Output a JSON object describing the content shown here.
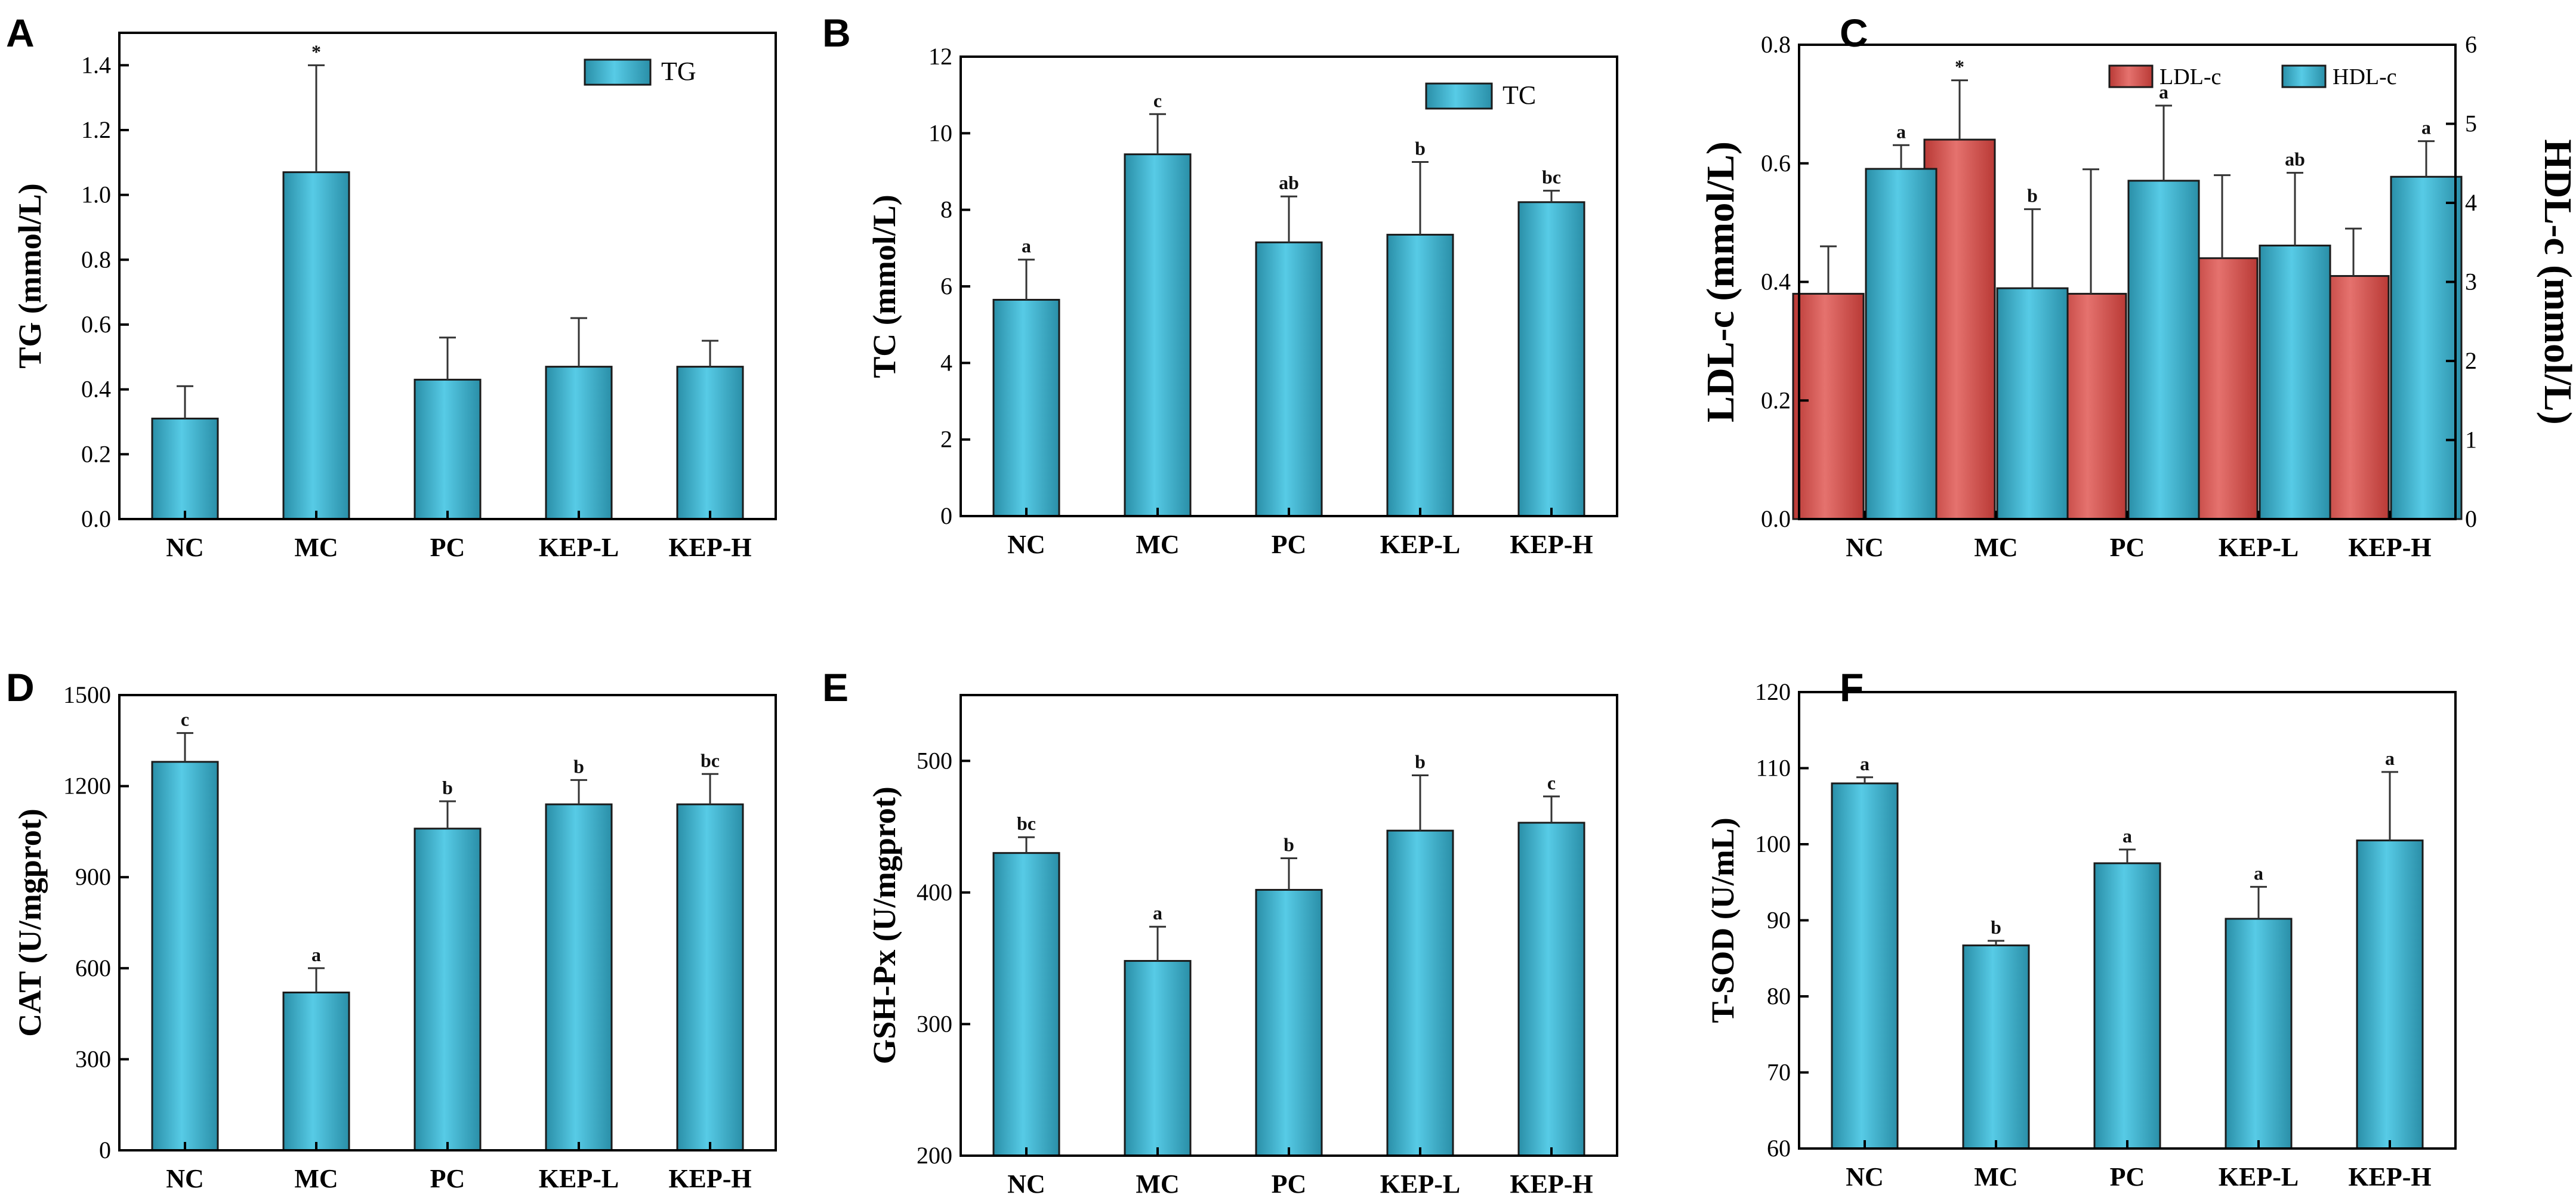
{
  "figure": {
    "panel_letters": [
      "A",
      "B",
      "C",
      "D",
      "E",
      "F"
    ]
  },
  "colors": {
    "bar_cyan": "#3cb6d2",
    "bar_red": "#d9504c",
    "axis": "#000000"
  },
  "chart_data": [
    {
      "panel": "A",
      "type": "bar",
      "title": "",
      "xlabel": "",
      "ylabel": "TG (mmol/L)",
      "categories": [
        "NC",
        "MC",
        "PC",
        "KEP-L",
        "KEP-H"
      ],
      "ylim": [
        0,
        1.5
      ],
      "yticks": [
        0.0,
        0.2,
        0.4,
        0.6,
        0.8,
        1.0,
        1.2,
        1.4
      ],
      "ytick_labels": [
        "0.0",
        "0.2",
        "0.4",
        "0.6",
        "0.8",
        "1.0",
        "1.2",
        "1.4"
      ],
      "legend": "top-right",
      "series": [
        {
          "name": "TG",
          "color": "#3cb6d2",
          "axis": "left",
          "values": [
            0.31,
            1.07,
            0.43,
            0.47,
            0.47
          ],
          "errors": [
            0.1,
            0.33,
            0.13,
            0.15,
            0.08
          ],
          "labels": [
            "",
            "*",
            "",
            "",
            ""
          ]
        }
      ]
    },
    {
      "panel": "B",
      "type": "bar",
      "title": "",
      "xlabel": "",
      "ylabel": "TC (mmol/L)",
      "categories": [
        "NC",
        "MC",
        "PC",
        "KEP-L",
        "KEP-H"
      ],
      "ylim": [
        0,
        12
      ],
      "yticks": [
        0,
        2,
        4,
        6,
        8,
        10,
        12
      ],
      "ytick_labels": [
        "0",
        "2",
        "4",
        "6",
        "8",
        "10",
        "12"
      ],
      "legend": "top-right",
      "series": [
        {
          "name": "TC",
          "color": "#3cb6d2",
          "axis": "left",
          "values": [
            5.65,
            9.45,
            7.15,
            7.35,
            8.2
          ],
          "errors": [
            1.05,
            1.05,
            1.2,
            1.9,
            0.3
          ],
          "labels": [
            "a",
            "c",
            "ab",
            "b",
            "bc"
          ]
        }
      ]
    },
    {
      "panel": "C",
      "type": "bar",
      "title": "",
      "xlabel": "",
      "ylabel": "LDL-c (mmol/L)",
      "ylabel_right": "HDL-c (mmol/L)",
      "categories": [
        "NC",
        "MC",
        "PC",
        "KEP-L",
        "KEP-H"
      ],
      "ylim": [
        0,
        0.8
      ],
      "yticks": [
        0.0,
        0.2,
        0.4,
        0.6,
        0.8
      ],
      "ytick_labels": [
        "0.0",
        "0.2",
        "0.4",
        "0.6",
        "0.8"
      ],
      "ylim_right": [
        0,
        6
      ],
      "yticks_right": [
        0,
        1,
        2,
        3,
        4,
        5,
        6
      ],
      "ytick_labels_right": [
        "0",
        "1",
        "2",
        "3",
        "4",
        "5",
        "6"
      ],
      "legend": "top-right",
      "series": [
        {
          "name": "LDL-c",
          "color": "#d9504c",
          "axis": "left",
          "values": [
            0.38,
            0.64,
            0.38,
            0.44,
            0.41
          ],
          "errors": [
            0.08,
            0.1,
            0.21,
            0.14,
            0.08
          ],
          "labels": [
            "",
            "*",
            "",
            "",
            ""
          ]
        },
        {
          "name": "HDL-c",
          "color": "#3cb6d2",
          "axis": "right",
          "values": [
            4.43,
            2.92,
            4.28,
            3.46,
            4.33
          ],
          "errors": [
            0.3,
            1.0,
            0.95,
            0.92,
            0.45
          ],
          "labels": [
            "a",
            "b",
            "a",
            "ab",
            "a"
          ]
        }
      ]
    },
    {
      "panel": "D",
      "type": "bar",
      "title": "",
      "xlabel": "",
      "ylabel": "CAT (U/mgprot)",
      "categories": [
        "NC",
        "MC",
        "PC",
        "KEP-L",
        "KEP-H"
      ],
      "ylim": [
        0,
        1500
      ],
      "yticks": [
        0,
        300,
        600,
        900,
        1200,
        1500
      ],
      "ytick_labels": [
        "0",
        "300",
        "600",
        "900",
        "1200",
        "1500"
      ],
      "legend": "none",
      "series": [
        {
          "name": "CAT",
          "color": "#3cb6d2",
          "axis": "left",
          "values": [
            1280,
            520,
            1060,
            1140,
            1140
          ],
          "errors": [
            95,
            80,
            90,
            80,
            100
          ],
          "labels": [
            "c",
            "a",
            "b",
            "b",
            "bc"
          ]
        }
      ]
    },
    {
      "panel": "E",
      "type": "bar",
      "title": "",
      "xlabel": "",
      "ylabel": "GSH-Px (U/mgprot)",
      "categories": [
        "NC",
        "MC",
        "PC",
        "KEP-L",
        "KEP-H"
      ],
      "ylim": [
        200,
        550
      ],
      "yticks": [
        200,
        300,
        400,
        500
      ],
      "ytick_labels": [
        "200",
        "300",
        "400",
        "500"
      ],
      "legend": "none",
      "series": [
        {
          "name": "GSH-Px",
          "color": "#3cb6d2",
          "axis": "left",
          "values": [
            430,
            348,
            402,
            447,
            453
          ],
          "errors": [
            12,
            26,
            24,
            42,
            20
          ],
          "labels": [
            "bc",
            "a",
            "b",
            "b",
            "c"
          ]
        }
      ]
    },
    {
      "panel": "F",
      "type": "bar",
      "title": "",
      "xlabel": "",
      "ylabel": "T-SOD (U/mL)",
      "categories": [
        "NC",
        "MC",
        "PC",
        "KEP-L",
        "KEP-H"
      ],
      "ylim": [
        60,
        120
      ],
      "yticks": [
        60,
        70,
        80,
        90,
        100,
        110,
        120
      ],
      "ytick_labels": [
        "60",
        "70",
        "80",
        "90",
        "100",
        "110",
        "120"
      ],
      "legend": "none",
      "series": [
        {
          "name": "T-SOD",
          "color": "#3cb6d2",
          "axis": "left",
          "values": [
            108,
            86.7,
            97.5,
            90.2,
            100.5
          ],
          "errors": [
            0.8,
            0.6,
            1.8,
            4.2,
            9.0
          ],
          "labels": [
            "a",
            "b",
            "a",
            "a",
            "a"
          ]
        }
      ]
    }
  ]
}
